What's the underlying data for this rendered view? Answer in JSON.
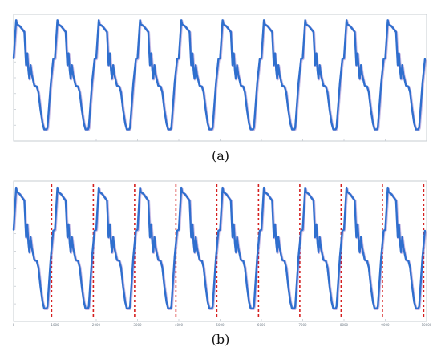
{
  "colors": {
    "signal": "#2f6fce",
    "signal_shadow": "#6b3fb5",
    "segment_red": "#d51f1f",
    "segment_green": "#2b8a2b"
  },
  "panels": [
    {
      "label": "(a)"
    },
    {
      "label": "(b)"
    }
  ],
  "chart_data": [
    {
      "type": "line",
      "title": "",
      "xlabel": "",
      "ylabel": "",
      "grid": false,
      "xlim": [
        0,
        10000
      ],
      "ylim": [
        0,
        1.3
      ],
      "x_tick_labels": [
        "",
        "",
        "",
        "",
        "",
        "",
        "",
        "",
        "",
        "",
        ""
      ],
      "y_tick_labels": [
        "",
        "",
        "",
        "",
        "",
        "",
        "",
        "",
        ""
      ],
      "series": [
        {
          "cycles": 10,
          "cycle_period": 1000,
          "cycle_start": 0,
          "cycle_shape_x": [
            0,
            60,
            80,
            150,
            260,
            300,
            330,
            360,
            380,
            410,
            440,
            500,
            560,
            600,
            650,
            700,
            740,
            760,
            800,
            820,
            900,
            960
          ],
          "cycle_shape_y": [
            0.85,
            1.24,
            1.2,
            1.18,
            1.12,
            0.78,
            0.9,
            0.72,
            0.64,
            0.78,
            0.68,
            0.57,
            0.56,
            0.5,
            0.32,
            0.18,
            0.12,
            0.12,
            0.12,
            0.14,
            0.6,
            0.84
          ]
        }
      ]
    },
    {
      "type": "line",
      "title": "",
      "xlabel": "",
      "ylabel": "",
      "grid": false,
      "xlim": [
        0,
        10000
      ],
      "ylim": [
        0,
        1.3
      ],
      "x_tick_labels": [
        "0",
        "1000",
        "2000",
        "3000",
        "4000",
        "5000",
        "6000",
        "7000",
        "8000",
        "9000",
        "10000"
      ],
      "y_tick_labels": [
        "",
        "",
        "",
        "",
        "",
        "",
        "",
        "",
        ""
      ],
      "series": [
        {
          "cycles": 10,
          "cycle_period": 1000,
          "cycle_start": 0,
          "cycle_shape_x": [
            0,
            60,
            80,
            150,
            260,
            300,
            330,
            360,
            380,
            410,
            440,
            500,
            560,
            600,
            650,
            700,
            740,
            760,
            800,
            820,
            900,
            960
          ],
          "cycle_shape_y": [
            0.85,
            1.24,
            1.2,
            1.18,
            1.12,
            0.78,
            0.9,
            0.72,
            0.64,
            0.78,
            0.68,
            0.57,
            0.56,
            0.5,
            0.32,
            0.18,
            0.12,
            0.12,
            0.12,
            0.14,
            0.6,
            0.84
          ]
        }
      ],
      "segment_boundaries": [
        {
          "x": 920,
          "color": "red"
        },
        {
          "x": 1930,
          "color": "red"
        },
        {
          "x": 2930,
          "color": "red"
        },
        {
          "x": 3930,
          "color": "red"
        },
        {
          "x": 4920,
          "color": "red"
        },
        {
          "x": 5930,
          "color": "red"
        },
        {
          "x": 6930,
          "color": "red"
        },
        {
          "x": 7930,
          "color": "red"
        },
        {
          "x": 8930,
          "color": "red"
        },
        {
          "x": 9930,
          "color": "red"
        }
      ]
    }
  ]
}
